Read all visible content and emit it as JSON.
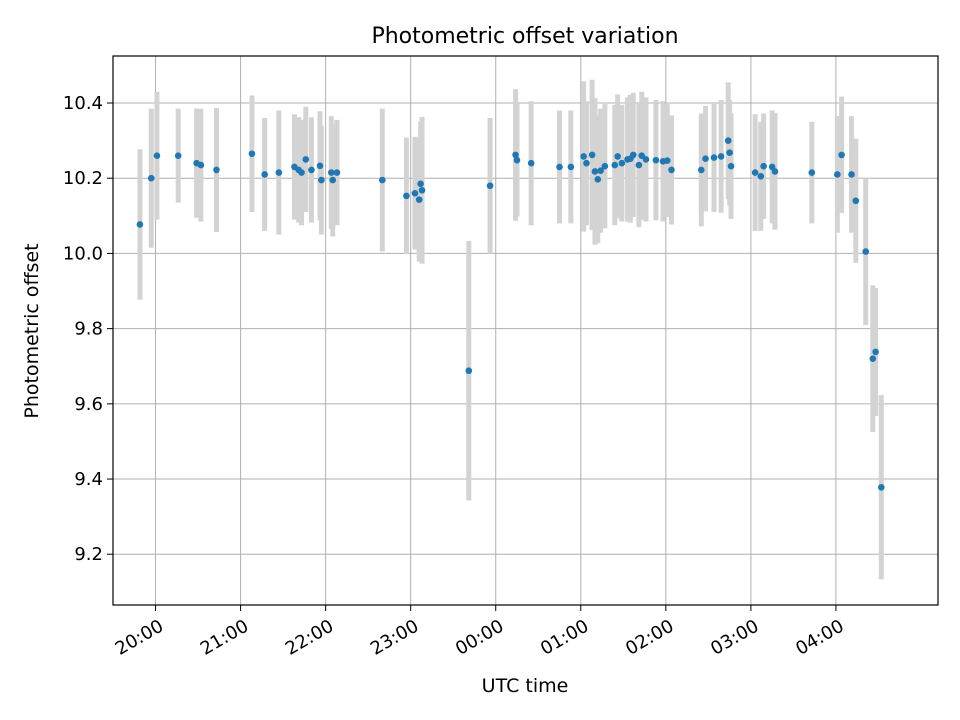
{
  "chart_data": {
    "type": "scatter",
    "title": "Photometric offset variation",
    "xlabel": "UTC time",
    "ylabel": "Photometric offset",
    "xlim": [
      "19:30",
      "05:12"
    ],
    "ylim": [
      9.065,
      10.525
    ],
    "grid": true,
    "x_ticks": [
      "20:00",
      "21:00",
      "22:00",
      "23:00",
      "00:00",
      "01:00",
      "02:00",
      "03:00",
      "04:00"
    ],
    "y_ticks": [
      "9.2",
      "9.4",
      "9.6",
      "9.8",
      "10.0",
      "10.2",
      "10.4"
    ],
    "colors": {
      "marker": "#1f77b4",
      "errorbar": "#d3d3d3",
      "grid": "#b0b0b0"
    },
    "series": [
      {
        "x": [
          "19:49",
          "19:57",
          "20:01",
          "20:16",
          "20:29",
          "20:32",
          "20:43",
          "21:08",
          "21:17",
          "21:27",
          "21:38",
          "21:41",
          "21:43",
          "21:46",
          "21:50",
          "21:56",
          "21:57",
          "22:04",
          "22:05",
          "22:08",
          "22:40",
          "22:57",
          "23:03",
          "23:06",
          "23:07",
          "23:08",
          "23:41",
          "23:56",
          "00:14",
          "00:15",
          "00:25",
          "00:45",
          "00:53",
          "01:02",
          "01:04",
          "01:08",
          "01:10",
          "01:12",
          "01:14",
          "01:17",
          "01:24",
          "01:26",
          "01:29",
          "01:33",
          "01:35",
          "01:37",
          "01:41",
          "01:43",
          "01:46",
          "01:53",
          "01:58",
          "02:01",
          "02:04",
          "02:25",
          "02:28",
          "02:34",
          "02:39",
          "02:44",
          "02:45",
          "02:46",
          "03:03",
          "03:07",
          "03:09",
          "03:15",
          "03:17",
          "03:43",
          "04:01",
          "04:04",
          "04:11",
          "04:14",
          "04:21",
          "04:26",
          "04:28",
          "04:32"
        ],
        "y": [
          10.077,
          10.2,
          10.26,
          10.26,
          10.24,
          10.235,
          10.222,
          10.265,
          10.21,
          10.215,
          10.23,
          10.222,
          10.215,
          10.25,
          10.222,
          10.233,
          10.195,
          10.215,
          10.195,
          10.215,
          10.195,
          10.153,
          10.16,
          10.143,
          10.185,
          10.168,
          9.688,
          10.18,
          10.262,
          10.248,
          10.24,
          10.23,
          10.23,
          10.258,
          10.24,
          10.262,
          10.218,
          10.197,
          10.22,
          10.232,
          10.235,
          10.258,
          10.24,
          10.25,
          10.252,
          10.262,
          10.235,
          10.26,
          10.25,
          10.248,
          10.245,
          10.247,
          10.222,
          10.222,
          10.252,
          10.255,
          10.258,
          10.3,
          10.268,
          10.232,
          10.215,
          10.205,
          10.232,
          10.23,
          10.218,
          10.215,
          10.21,
          10.262,
          10.21,
          10.14,
          10.005,
          9.72,
          9.738,
          9.378
        ],
        "err": [
          0.2,
          0.185,
          0.17,
          0.125,
          0.145,
          0.15,
          0.165,
          0.155,
          0.15,
          0.165,
          0.14,
          0.14,
          0.14,
          0.14,
          0.14,
          0.145,
          0.145,
          0.15,
          0.15,
          0.14,
          0.19,
          0.155,
          0.15,
          0.165,
          0.165,
          0.195,
          0.345,
          0.18,
          0.175,
          0.15,
          0.165,
          0.15,
          0.15,
          0.2,
          0.165,
          0.2,
          0.195,
          0.17,
          0.165,
          0.165,
          0.16,
          0.165,
          0.155,
          0.165,
          0.17,
          0.165,
          0.165,
          0.17,
          0.165,
          0.16,
          0.16,
          0.15,
          0.145,
          0.15,
          0.14,
          0.145,
          0.15,
          0.155,
          0.14,
          0.14,
          0.155,
          0.145,
          0.14,
          0.15,
          0.155,
          0.135,
          0.155,
          0.155,
          0.155,
          0.165,
          0.195,
          0.195,
          0.17,
          0.245
        ]
      }
    ]
  }
}
